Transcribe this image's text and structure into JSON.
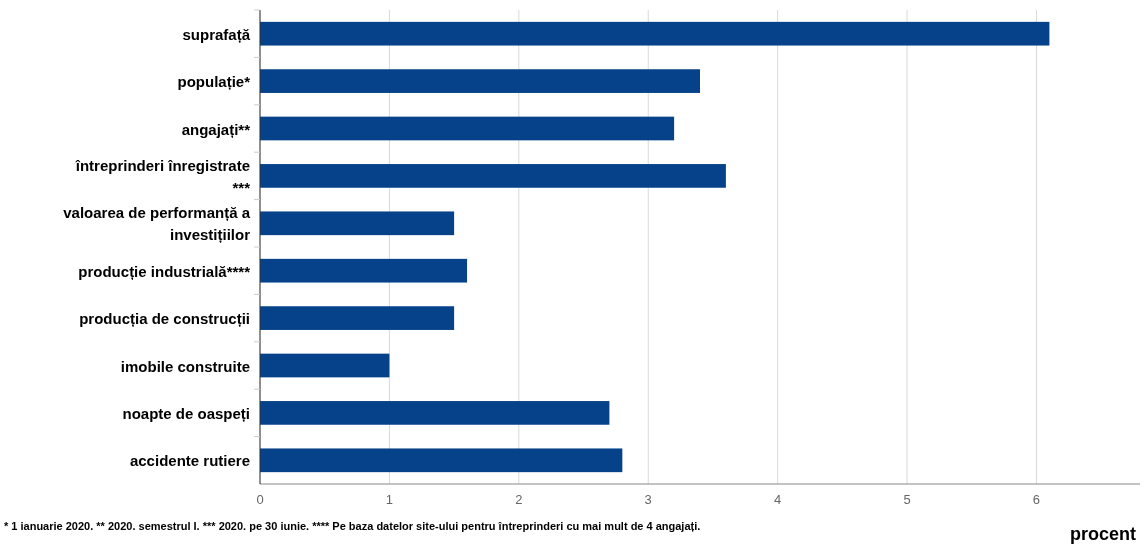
{
  "chart_data": {
    "type": "bar",
    "orientation": "horizontal",
    "xlabel": "procent",
    "categories": [
      "suprafață",
      "populație*",
      "angajați**",
      "întreprinderi înregistrate ***",
      "valoarea de performanță a investițiilor",
      "producție industrială****",
      "producția de construcții",
      "imobile construite",
      "noapte de oaspeți",
      "accidente rutiere"
    ],
    "values": [
      6.1,
      3.4,
      3.2,
      3.6,
      1.5,
      1.6,
      1.5,
      1.0,
      2.7,
      2.8
    ],
    "color": "#064289",
    "xlim": [
      0,
      6.8
    ],
    "xticks": [
      0,
      1,
      2,
      3,
      4,
      5,
      6
    ],
    "grid": "x",
    "annotations": [
      "* 1 ianuarie 2020. ** 2020. semestrul I. *** 2020. pe 30 iunie. **** Pe baza datelor site-ului pentru întreprinderi cu mai mult de 4 angajați."
    ]
  }
}
